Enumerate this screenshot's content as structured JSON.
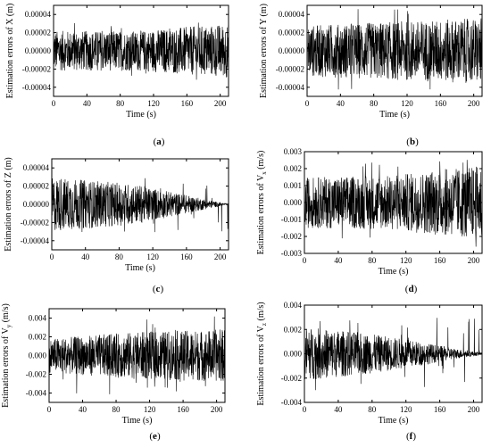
{
  "chart_data": [
    {
      "id": "a",
      "type": "line",
      "caption_letter": "a",
      "ylabel": "Estimation errors of X (m)",
      "ylabel_sub": "",
      "ylabel_unit": "",
      "xlabel": "Time (s)",
      "xlim": [
        0,
        210
      ],
      "ylim": [
        -5e-05,
        5e-05
      ],
      "xticks": [
        0,
        40,
        80,
        120,
        160,
        200
      ],
      "xtick_labels": [
        "0",
        "40",
        "80",
        "120",
        "160",
        "200"
      ],
      "yticks": [
        -4e-05,
        -2e-05,
        0.0,
        2e-05,
        4e-05
      ],
      "ytick_labels": [
        "-0.00004",
        "-0.00002",
        "0.00000",
        "0.00002",
        "0.00004"
      ],
      "series": [
        {
          "x_range": [
            0,
            210
          ],
          "envelope": [
            [
              0,
              2.2e-05
            ],
            [
              100,
              2.2e-05
            ],
            [
              210,
              3e-05
            ]
          ],
          "peak": 3.2e-05
        }
      ]
    },
    {
      "id": "b",
      "type": "line",
      "caption_letter": "b",
      "ylabel": "Estimation errors of Y (m)",
      "ylabel_sub": "",
      "ylabel_unit": "",
      "xlabel": "Time (s)",
      "xlim": [
        0,
        210
      ],
      "ylim": [
        -5e-05,
        5e-05
      ],
      "xticks": [
        0,
        40,
        80,
        120,
        160,
        200
      ],
      "xtick_labels": [
        "0",
        "40",
        "80",
        "120",
        "160",
        "200"
      ],
      "yticks": [
        -4e-05,
        -2e-05,
        0.0,
        2e-05,
        4e-05
      ],
      "ytick_labels": [
        "-0.00004",
        "-0.00002",
        "0.00000",
        "0.00002",
        "0.00004"
      ],
      "series": [
        {
          "x_range": [
            0,
            210
          ],
          "envelope": [
            [
              0,
              2.8e-05
            ],
            [
              100,
              3.2e-05
            ],
            [
              210,
              3.6e-05
            ]
          ],
          "peak": 4.8e-05
        }
      ]
    },
    {
      "id": "c",
      "type": "line",
      "caption_letter": "c",
      "ylabel": "Estimation errors of Z (m)",
      "ylabel_sub": "",
      "ylabel_unit": "",
      "xlabel": "Time (s)",
      "xlim": [
        0,
        210
      ],
      "ylim": [
        -5e-05,
        5e-05
      ],
      "xticks": [
        0,
        40,
        80,
        120,
        160,
        200
      ],
      "xtick_labels": [
        "0",
        "40",
        "80",
        "120",
        "160",
        "200"
      ],
      "yticks": [
        -4e-05,
        -2e-05,
        0.0,
        2e-05,
        4e-05
      ],
      "ytick_labels": [
        "-0.00004",
        "-0.00002",
        "0.00000",
        "0.00002",
        "0.00004"
      ],
      "series": [
        {
          "x_range": [
            0,
            210
          ],
          "envelope": [
            [
              0,
              3e-05
            ],
            [
              100,
              2.2e-05
            ],
            [
              150,
              1.2e-05
            ],
            [
              205,
              1e-06
            ],
            [
              210,
              5e-07
            ]
          ],
          "peak": 3.2e-05
        }
      ]
    },
    {
      "id": "d",
      "type": "line",
      "caption_letter": "d",
      "ylabel": "Estimation errors of V",
      "ylabel_sub": "x",
      "ylabel_unit": " (m/s)",
      "xlabel": "Time (s)",
      "xlim": [
        0,
        210
      ],
      "ylim": [
        -0.003,
        0.003
      ],
      "xticks": [
        0,
        40,
        80,
        120,
        160,
        200
      ],
      "xtick_labels": [
        "0",
        "40",
        "80",
        "120",
        "160",
        "200"
      ],
      "yticks": [
        -0.003,
        -0.002,
        -0.001,
        0.0,
        0.001,
        0.002,
        0.003
      ],
      "ytick_labels": [
        "-0.003",
        "-0.002",
        "-0.001",
        "0.000",
        "0.001",
        "0.002",
        "0.003"
      ],
      "series": [
        {
          "x_range": [
            0,
            210
          ],
          "envelope": [
            [
              0,
              0.0015
            ],
            [
              100,
              0.0016
            ],
            [
              210,
              0.0022
            ]
          ],
          "peak": 0.0027
        }
      ]
    },
    {
      "id": "e",
      "type": "line",
      "caption_letter": "e",
      "ylabel": "Estimation errors of V",
      "ylabel_sub": "y",
      "ylabel_unit": " (m/s)",
      "xlabel": "Time (s)",
      "xlim": [
        0,
        210
      ],
      "ylim": [
        -0.005,
        0.005
      ],
      "xticks": [
        0,
        40,
        80,
        120,
        160,
        200
      ],
      "xtick_labels": [
        "0",
        "40",
        "80",
        "120",
        "160",
        "200"
      ],
      "yticks": [
        -0.004,
        -0.002,
        0.0,
        0.002,
        0.004
      ],
      "ytick_labels": [
        "-0.004",
        "-0.002",
        "0.000",
        "0.002",
        "0.004"
      ],
      "series": [
        {
          "x_range": [
            0,
            210
          ],
          "envelope": [
            [
              0,
              0.0018
            ],
            [
              100,
              0.0025
            ],
            [
              210,
              0.0028
            ]
          ],
          "peak": 0.0044
        }
      ]
    },
    {
      "id": "f",
      "type": "line",
      "caption_letter": "f",
      "ylabel": "Estimation errors of V",
      "ylabel_sub": "z",
      "ylabel_unit": " (m/s)",
      "xlabel": "Time (s)",
      "xlim": [
        0,
        210
      ],
      "ylim": [
        -0.004,
        0.004
      ],
      "xticks": [
        0,
        40,
        80,
        120,
        160,
        200
      ],
      "xtick_labels": [
        "0",
        "40",
        "80",
        "120",
        "160",
        "200"
      ],
      "yticks": [
        -0.004,
        -0.002,
        0.0,
        0.002,
        0.004
      ],
      "ytick_labels": [
        "-0.004",
        "-0.002",
        "0.000",
        "0.002",
        "0.004"
      ],
      "series": [
        {
          "x_range": [
            0,
            210
          ],
          "envelope": [
            [
              0,
              0.0022
            ],
            [
              60,
              0.0018
            ],
            [
              120,
              0.0012
            ],
            [
              180,
              0.0004
            ],
            [
              210,
              0.0001
            ]
          ],
          "peak": 0.003
        }
      ]
    }
  ],
  "colors": {
    "trace": "#000000",
    "frame": "#000000",
    "background": "#ffffff"
  }
}
